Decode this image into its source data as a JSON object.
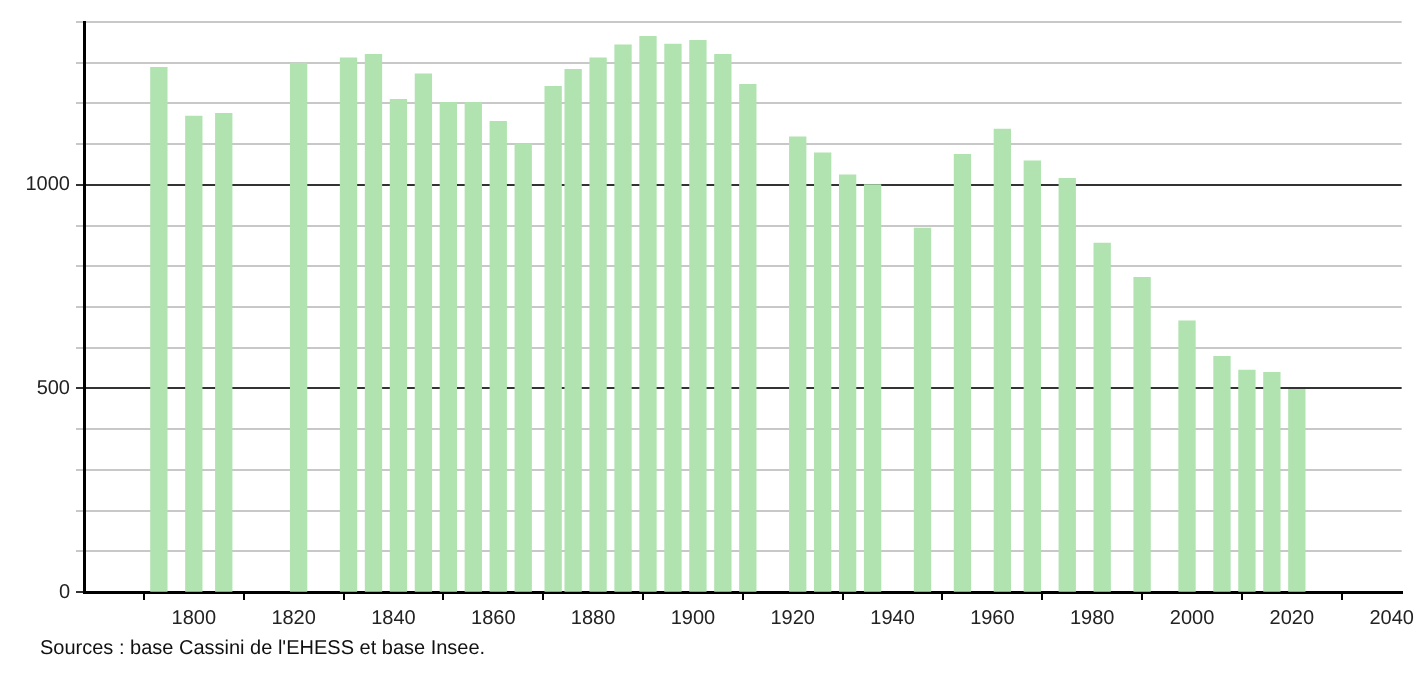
{
  "chart_data": {
    "type": "bar",
    "color": "#b0e3b0",
    "x": [
      1793,
      1800,
      1806,
      1821,
      1831,
      1836,
      1841,
      1846,
      1851,
      1856,
      1861,
      1866,
      1872,
      1876,
      1881,
      1886,
      1891,
      1896,
      1901,
      1906,
      1911,
      1921,
      1926,
      1931,
      1936,
      1946,
      1954,
      1962,
      1968,
      1975,
      1982,
      1990,
      1999,
      2006,
      2011,
      2016,
      2021
    ],
    "values": [
      1288,
      1168,
      1175,
      1298,
      1311,
      1320,
      1209,
      1272,
      1202,
      1202,
      1155,
      1100,
      1241,
      1283,
      1311,
      1343,
      1364,
      1345,
      1354,
      1320,
      1246,
      1117,
      1078,
      1024,
      1000,
      893,
      1074,
      1136,
      1058,
      1015,
      856,
      772,
      665,
      578,
      544,
      539,
      497
    ],
    "xlim": [
      1778,
      2042
    ],
    "xticks": [
      1800,
      1820,
      1840,
      1860,
      1880,
      1900,
      1920,
      1940,
      1960,
      1980,
      2000,
      2020,
      2040
    ],
    "ylim": [
      0,
      1400
    ],
    "yticks": [
      0,
      {
        "value": 100,
        "label": null
      },
      {
        "value": 200,
        "label": null
      },
      {
        "value": 300,
        "label": null
      },
      {
        "value": 400,
        "label": null
      },
      500,
      {
        "value": 600,
        "label": null
      },
      {
        "value": 700,
        "label": null
      },
      {
        "value": 800,
        "label": null
      },
      {
        "value": 900,
        "label": null
      },
      1000,
      {
        "value": 1100,
        "label": null
      },
      {
        "value": 1200,
        "label": null
      },
      {
        "value": 1300,
        "label": null
      },
      {
        "value": 1400,
        "label": null
      }
    ],
    "grid": "y",
    "legend": false,
    "annotations": [
      "Sources : base Cassini de l'EHESS et base Insee."
    ]
  }
}
